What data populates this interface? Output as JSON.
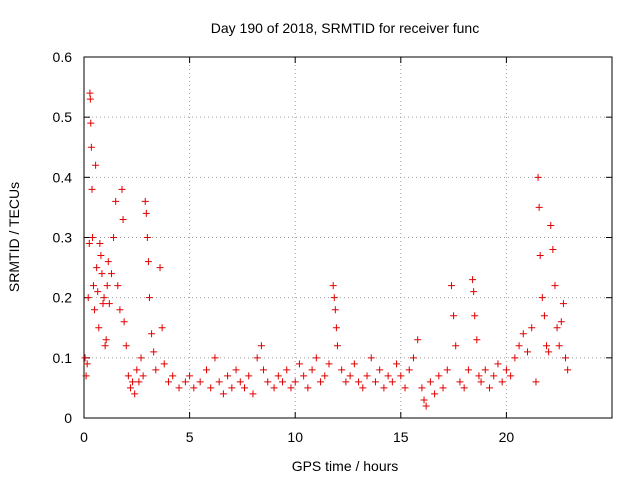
{
  "chart_data": {
    "type": "scatter",
    "title": "Day 190 of 2018, SRMTID for receiver func",
    "xlabel": "GPS time / hours",
    "ylabel": "SRMTID / TECUs",
    "xlim": [
      0,
      25
    ],
    "ylim": [
      0,
      0.6
    ],
    "xticks": [
      0,
      5,
      10,
      15,
      20
    ],
    "xtick_labels": [
      "0",
      "5",
      "10",
      "15",
      "20"
    ],
    "yticks": [
      0,
      0.1,
      0.2,
      0.3,
      0.4,
      0.5,
      0.6
    ],
    "ytick_labels": [
      "0",
      "0.1",
      "0.2",
      "0.3",
      "0.4",
      "0.5",
      "0.6"
    ],
    "grid": true,
    "marker": "+",
    "color": "#e00000",
    "series": [
      {
        "name": "SRMTID",
        "points": [
          [
            0.05,
            0.1
          ],
          [
            0.1,
            0.07
          ],
          [
            0.15,
            0.09
          ],
          [
            0.2,
            0.2
          ],
          [
            0.25,
            0.29
          ],
          [
            0.28,
            0.54
          ],
          [
            0.3,
            0.53
          ],
          [
            0.32,
            0.49
          ],
          [
            0.35,
            0.45
          ],
          [
            0.38,
            0.38
          ],
          [
            0.4,
            0.3
          ],
          [
            0.45,
            0.22
          ],
          [
            0.5,
            0.18
          ],
          [
            0.55,
            0.42
          ],
          [
            0.6,
            0.25
          ],
          [
            0.65,
            0.21
          ],
          [
            0.7,
            0.15
          ],
          [
            0.75,
            0.29
          ],
          [
            0.8,
            0.27
          ],
          [
            0.85,
            0.24
          ],
          [
            0.9,
            0.19
          ],
          [
            0.95,
            0.2
          ],
          [
            1.0,
            0.12
          ],
          [
            1.05,
            0.13
          ],
          [
            1.1,
            0.22
          ],
          [
            1.15,
            0.26
          ],
          [
            1.2,
            0.19
          ],
          [
            1.3,
            0.24
          ],
          [
            1.4,
            0.3
          ],
          [
            1.5,
            0.36
          ],
          [
            1.6,
            0.22
          ],
          [
            1.7,
            0.18
          ],
          [
            1.8,
            0.38
          ],
          [
            1.85,
            0.33
          ],
          [
            1.9,
            0.16
          ],
          [
            2.0,
            0.12
          ],
          [
            2.1,
            0.07
          ],
          [
            2.2,
            0.05
          ],
          [
            2.3,
            0.06
          ],
          [
            2.4,
            0.04
          ],
          [
            2.5,
            0.08
          ],
          [
            2.6,
            0.06
          ],
          [
            2.7,
            0.1
          ],
          [
            2.8,
            0.07
          ],
          [
            2.9,
            0.36
          ],
          [
            2.95,
            0.34
          ],
          [
            3.0,
            0.3
          ],
          [
            3.05,
            0.26
          ],
          [
            3.1,
            0.2
          ],
          [
            3.2,
            0.14
          ],
          [
            3.3,
            0.11
          ],
          [
            3.4,
            0.08
          ],
          [
            3.6,
            0.25
          ],
          [
            3.7,
            0.15
          ],
          [
            3.8,
            0.09
          ],
          [
            4.0,
            0.06
          ],
          [
            4.2,
            0.07
          ],
          [
            4.5,
            0.05
          ],
          [
            4.8,
            0.06
          ],
          [
            5.0,
            0.07
          ],
          [
            5.2,
            0.05
          ],
          [
            5.5,
            0.06
          ],
          [
            5.8,
            0.08
          ],
          [
            6.0,
            0.05
          ],
          [
            6.2,
            0.1
          ],
          [
            6.4,
            0.06
          ],
          [
            6.6,
            0.04
          ],
          [
            6.8,
            0.07
          ],
          [
            7.0,
            0.05
          ],
          [
            7.2,
            0.08
          ],
          [
            7.4,
            0.06
          ],
          [
            7.6,
            0.05
          ],
          [
            7.8,
            0.07
          ],
          [
            8.0,
            0.04
          ],
          [
            8.2,
            0.1
          ],
          [
            8.4,
            0.12
          ],
          [
            8.5,
            0.08
          ],
          [
            8.7,
            0.06
          ],
          [
            9.0,
            0.05
          ],
          [
            9.2,
            0.07
          ],
          [
            9.4,
            0.06
          ],
          [
            9.6,
            0.08
          ],
          [
            9.8,
            0.05
          ],
          [
            10.0,
            0.06
          ],
          [
            10.2,
            0.09
          ],
          [
            10.4,
            0.07
          ],
          [
            10.6,
            0.05
          ],
          [
            10.8,
            0.08
          ],
          [
            11.0,
            0.1
          ],
          [
            11.2,
            0.06
          ],
          [
            11.4,
            0.07
          ],
          [
            11.6,
            0.09
          ],
          [
            11.8,
            0.22
          ],
          [
            11.85,
            0.2
          ],
          [
            11.9,
            0.18
          ],
          [
            11.95,
            0.15
          ],
          [
            12.0,
            0.12
          ],
          [
            12.2,
            0.08
          ],
          [
            12.4,
            0.06
          ],
          [
            12.6,
            0.07
          ],
          [
            12.8,
            0.09
          ],
          [
            13.0,
            0.06
          ],
          [
            13.2,
            0.05
          ],
          [
            13.4,
            0.07
          ],
          [
            13.6,
            0.1
          ],
          [
            13.8,
            0.06
          ],
          [
            14.0,
            0.08
          ],
          [
            14.2,
            0.05
          ],
          [
            14.4,
            0.07
          ],
          [
            14.6,
            0.06
          ],
          [
            14.8,
            0.09
          ],
          [
            15.0,
            0.07
          ],
          [
            15.2,
            0.05
          ],
          [
            15.4,
            0.08
          ],
          [
            15.6,
            0.1
          ],
          [
            15.8,
            0.13
          ],
          [
            16.0,
            0.05
          ],
          [
            16.1,
            0.03
          ],
          [
            16.2,
            0.02
          ],
          [
            16.4,
            0.06
          ],
          [
            16.6,
            0.04
          ],
          [
            16.8,
            0.07
          ],
          [
            17.0,
            0.05
          ],
          [
            17.2,
            0.08
          ],
          [
            17.4,
            0.22
          ],
          [
            17.5,
            0.17
          ],
          [
            17.6,
            0.12
          ],
          [
            17.8,
            0.06
          ],
          [
            18.0,
            0.05
          ],
          [
            18.2,
            0.08
          ],
          [
            18.4,
            0.23
          ],
          [
            18.45,
            0.21
          ],
          [
            18.5,
            0.17
          ],
          [
            18.6,
            0.13
          ],
          [
            18.7,
            0.07
          ],
          [
            18.8,
            0.06
          ],
          [
            19.0,
            0.08
          ],
          [
            19.2,
            0.05
          ],
          [
            19.4,
            0.07
          ],
          [
            19.6,
            0.09
          ],
          [
            19.8,
            0.06
          ],
          [
            20.0,
            0.08
          ],
          [
            20.2,
            0.07
          ],
          [
            20.4,
            0.1
          ],
          [
            20.6,
            0.12
          ],
          [
            20.8,
            0.14
          ],
          [
            21.0,
            0.11
          ],
          [
            21.2,
            0.15
          ],
          [
            21.4,
            0.06
          ],
          [
            21.5,
            0.4
          ],
          [
            21.55,
            0.35
          ],
          [
            21.6,
            0.27
          ],
          [
            21.7,
            0.2
          ],
          [
            21.8,
            0.17
          ],
          [
            21.9,
            0.12
          ],
          [
            22.0,
            0.11
          ],
          [
            22.1,
            0.32
          ],
          [
            22.2,
            0.28
          ],
          [
            22.3,
            0.22
          ],
          [
            22.4,
            0.15
          ],
          [
            22.5,
            0.12
          ],
          [
            22.6,
            0.16
          ],
          [
            22.7,
            0.19
          ],
          [
            22.8,
            0.1
          ],
          [
            22.9,
            0.08
          ]
        ]
      }
    ]
  }
}
